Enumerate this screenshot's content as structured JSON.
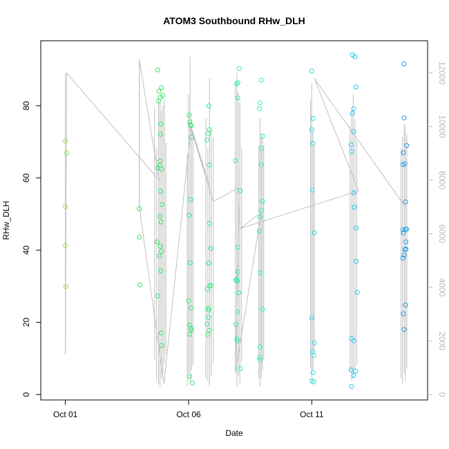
{
  "chart_data": {
    "type": "scatter",
    "title": "ATOM3 Southbound RHw_DLH",
    "xlabel": "Date",
    "ylabel": "RHw_DLH",
    "x_ticks": [
      {
        "label": "Oct 01",
        "day": 1
      },
      {
        "label": "Oct 06",
        "day": 6
      },
      {
        "label": "Oct 11",
        "day": 11
      }
    ],
    "xlim_days": [
      0.0,
      15.7
    ],
    "ylim": [
      -1.5,
      98
    ],
    "y_ticks": [
      0,
      20,
      40,
      60,
      80
    ],
    "y2lim": [
      -200,
      13200
    ],
    "y2_ticks": [
      0,
      2000,
      4000,
      6000,
      8000,
      10000,
      12000
    ],
    "grid": false,
    "legend": "none",
    "line_color": "#c0c0c0",
    "point_color_ramp": [
      "#99e04a",
      "#36e44c",
      "#2de87c",
      "#2ef0c8",
      "#22d2f0",
      "#1e9ae8"
    ],
    "series": [
      {
        "values": [
          [
            1.0,
            70.2
          ],
          [
            1.05,
            66.9
          ],
          [
            1.0,
            52.1
          ],
          [
            1.0,
            41.3
          ],
          [
            1.02,
            29.9
          ],
          [
            4.0,
            51.5
          ],
          [
            4.0,
            43.6
          ],
          [
            4.02,
            30.4
          ],
          [
            4.75,
            89.9
          ],
          [
            4.8,
            84.0
          ],
          [
            4.9,
            85.0
          ],
          [
            4.85,
            82.3
          ],
          [
            4.95,
            82.8
          ],
          [
            4.78,
            81.3
          ],
          [
            4.87,
            75.0
          ],
          [
            4.86,
            72.1
          ],
          [
            4.84,
            64.7
          ],
          [
            4.82,
            63.5
          ],
          [
            4.76,
            62.8
          ],
          [
            4.9,
            62.5
          ],
          [
            4.86,
            56.3
          ],
          [
            4.92,
            52.6
          ],
          [
            4.84,
            49.4
          ],
          [
            4.88,
            47.8
          ],
          [
            4.72,
            42.3
          ],
          [
            4.85,
            41.1
          ],
          [
            4.9,
            39.7
          ],
          [
            4.82,
            38.4
          ],
          [
            4.87,
            34.3
          ],
          [
            4.75,
            27.3
          ],
          [
            4.88,
            17.0
          ],
          [
            4.9,
            13.6
          ],
          [
            6.02,
            77.4
          ],
          [
            6.05,
            75.5
          ],
          [
            6.1,
            74.5
          ],
          [
            6.08,
            74.7
          ],
          [
            6.12,
            71.3
          ],
          [
            6.08,
            54.0
          ],
          [
            6.02,
            49.6
          ],
          [
            6.06,
            36.5
          ],
          [
            6.0,
            26.0
          ],
          [
            6.1,
            24.0
          ],
          [
            6.05,
            19.3
          ],
          [
            6.08,
            18.4
          ],
          [
            6.04,
            16.7
          ],
          [
            6.12,
            17.9
          ],
          [
            6.05,
            5.0
          ],
          [
            6.15,
            3.2
          ],
          [
            6.85,
            73.4
          ],
          [
            6.8,
            72.2
          ],
          [
            6.75,
            70.5
          ],
          [
            6.85,
            63.6
          ],
          [
            6.82,
            80.0
          ],
          [
            6.85,
            47.4
          ],
          [
            6.9,
            40.5
          ],
          [
            6.82,
            36.4
          ],
          [
            6.9,
            30.2
          ],
          [
            6.85,
            30.1
          ],
          [
            6.76,
            29.2
          ],
          [
            6.8,
            23.9
          ],
          [
            6.82,
            23.4
          ],
          [
            6.8,
            21.4
          ],
          [
            6.75,
            19.5
          ],
          [
            6.85,
            17.8
          ],
          [
            6.78,
            16.7
          ]
        ]
      },
      {
        "values": [
          [
            8.05,
            90.3
          ],
          [
            8.0,
            86.4
          ],
          [
            7.95,
            86.1
          ],
          [
            8.0,
            82.2
          ],
          [
            7.9,
            64.8
          ],
          [
            8.1,
            56.5
          ],
          [
            8.0,
            40.8
          ],
          [
            8.0,
            34.0
          ],
          [
            7.92,
            31.7
          ],
          [
            7.95,
            31.9
          ],
          [
            7.98,
            31.4
          ],
          [
            8.03,
            28.2
          ],
          [
            7.98,
            22.9
          ],
          [
            7.92,
            19.4
          ],
          [
            7.96,
            15.5
          ],
          [
            7.98,
            14.8
          ],
          [
            8.1,
            7.2
          ],
          [
            8.95,
            87.1
          ],
          [
            8.9,
            80.8
          ],
          [
            8.88,
            79.2
          ],
          [
            9.0,
            71.6
          ],
          [
            8.96,
            68.2
          ],
          [
            8.95,
            63.7
          ],
          [
            9.0,
            53.5
          ],
          [
            8.96,
            51.0
          ],
          [
            8.9,
            49.2
          ],
          [
            8.88,
            45.3
          ],
          [
            8.92,
            33.7
          ],
          [
            9.0,
            23.6
          ],
          [
            8.9,
            13.2
          ],
          [
            8.88,
            10.3
          ],
          [
            8.9,
            9.6
          ]
        ]
      },
      {
        "values": [
          [
            11.0,
            89.6
          ],
          [
            11.05,
            76.5
          ],
          [
            11.0,
            73.4
          ],
          [
            11.05,
            69.6
          ],
          [
            11.02,
            56.6
          ],
          [
            11.1,
            44.8
          ],
          [
            11.0,
            21.2
          ],
          [
            11.1,
            14.3
          ],
          [
            11.03,
            11.8
          ],
          [
            11.08,
            10.8
          ],
          [
            11.05,
            6.1
          ],
          [
            11.0,
            3.8
          ],
          [
            11.08,
            3.5
          ],
          [
            12.65,
            94.1
          ],
          [
            12.75,
            93.6
          ],
          [
            12.8,
            85.2
          ],
          [
            12.7,
            79.2
          ],
          [
            12.65,
            77.9
          ],
          [
            12.7,
            72.8
          ],
          [
            12.6,
            69.2
          ],
          [
            12.62,
            67.3
          ],
          [
            12.7,
            55.9
          ],
          [
            12.72,
            51.9
          ],
          [
            12.8,
            46.1
          ],
          [
            12.8,
            36.9
          ],
          [
            12.85,
            28.3
          ],
          [
            12.62,
            15.5
          ],
          [
            12.7,
            14.9
          ],
          [
            12.6,
            6.8
          ],
          [
            12.78,
            6.5
          ],
          [
            12.7,
            5.3
          ],
          [
            12.62,
            2.2
          ]
        ]
      },
      {
        "values": [
          [
            14.75,
            91.6
          ],
          [
            14.75,
            76.6
          ],
          [
            14.85,
            69.0
          ],
          [
            14.72,
            67.0
          ],
          [
            14.7,
            63.7
          ],
          [
            14.78,
            63.9
          ],
          [
            14.8,
            53.4
          ],
          [
            14.7,
            45.6
          ],
          [
            14.72,
            44.8
          ],
          [
            14.8,
            45.8
          ],
          [
            14.85,
            45.8
          ],
          [
            14.82,
            42.3
          ],
          [
            14.78,
            40.2
          ],
          [
            14.82,
            40.3
          ],
          [
            14.75,
            38.6
          ],
          [
            14.7,
            37.8
          ],
          [
            14.8,
            24.8
          ],
          [
            14.72,
            22.4
          ],
          [
            14.75,
            18.0
          ]
        ]
      }
    ],
    "line_path_days_y2": [
      [
        1.0,
        1500
      ],
      [
        1.05,
        12000
      ],
      [
        4.8,
        8000
      ],
      [
        4.0,
        12500
      ],
      [
        4.0,
        7000
      ],
      [
        5.0,
        400
      ],
      [
        6.1,
        10000
      ],
      [
        6.85,
        7800
      ],
      [
        6.0,
        10200
      ],
      [
        7.0,
        7200
      ],
      [
        8.0,
        7700
      ],
      [
        8.05,
        6800
      ],
      [
        7.9,
        800
      ],
      [
        8.95,
        6800
      ],
      [
        8.1,
        6200
      ],
      [
        12.9,
        7600
      ],
      [
        11.1,
        11800
      ],
      [
        14.8,
        7000
      ]
    ],
    "spikes_days_y2_top": [
      [
        1.0,
        1500,
        12000
      ],
      [
        4.0,
        7000,
        12500
      ],
      [
        4.62,
        1300,
        10700
      ],
      [
        4.7,
        500,
        9200
      ],
      [
        4.78,
        400,
        11000
      ],
      [
        4.84,
        300,
        10900
      ],
      [
        4.9,
        600,
        10600
      ],
      [
        4.96,
        800,
        10800
      ],
      [
        5.02,
        1200,
        11000
      ],
      [
        5.08,
        1500,
        9400
      ],
      [
        5.95,
        300,
        9000
      ],
      [
        6.0,
        800,
        11200
      ],
      [
        6.06,
        500,
        12600
      ],
      [
        6.12,
        900,
        10300
      ],
      [
        6.18,
        1100,
        9800
      ],
      [
        6.7,
        600,
        10300
      ],
      [
        6.78,
        500,
        9200
      ],
      [
        6.85,
        300,
        11800
      ],
      [
        6.92,
        700,
        9900
      ],
      [
        7.0,
        1200,
        9600
      ],
      [
        7.9,
        800,
        11600
      ],
      [
        7.96,
        300,
        12000
      ],
      [
        8.02,
        700,
        11300
      ],
      [
        8.08,
        400,
        10900
      ],
      [
        8.15,
        1200,
        9200
      ],
      [
        8.85,
        600,
        9300
      ],
      [
        8.9,
        300,
        10300
      ],
      [
        8.95,
        600,
        9600
      ],
      [
        9.0,
        900,
        9700
      ],
      [
        9.05,
        1300,
        9300
      ],
      [
        10.95,
        1000,
        11000
      ],
      [
        11.0,
        400,
        11600
      ],
      [
        11.05,
        900,
        9800
      ],
      [
        11.1,
        1600,
        9300
      ],
      [
        12.55,
        900,
        10000
      ],
      [
        12.62,
        500,
        10600
      ],
      [
        12.68,
        600,
        11200
      ],
      [
        12.75,
        900,
        10300
      ],
      [
        12.82,
        1100,
        9500
      ],
      [
        14.62,
        600,
        9200
      ],
      [
        14.68,
        400,
        9600
      ],
      [
        14.75,
        800,
        10100
      ],
      [
        14.8,
        500,
        10000
      ],
      [
        14.86,
        1000,
        9700
      ]
    ]
  }
}
